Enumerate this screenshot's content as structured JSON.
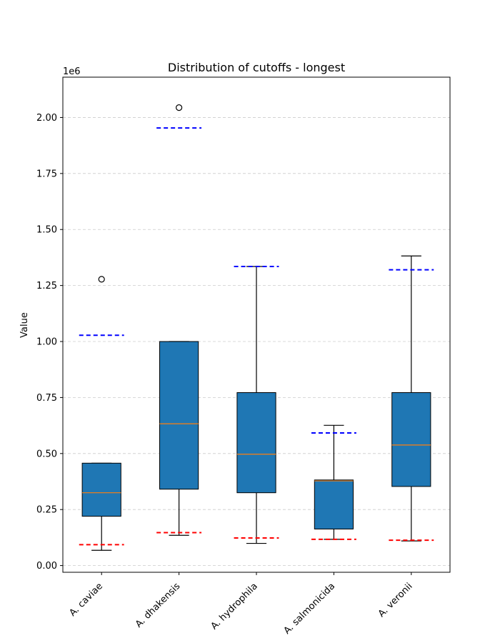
{
  "chart_data": {
    "type": "box",
    "title": "Distribution of cutoffs - longest",
    "xlabel": "",
    "ylabel": "Value",
    "y_offset_label": "1e6",
    "ylim": [
      -30000,
      2180000
    ],
    "y_ticks": [
      0,
      250000,
      500000,
      750000,
      1000000,
      1250000,
      1500000,
      1750000,
      2000000
    ],
    "y_tick_labels": [
      "0.00",
      "0.25",
      "0.50",
      "0.75",
      "1.00",
      "1.25",
      "1.50",
      "1.75",
      "2.00"
    ],
    "grid": "y-dashed",
    "categories": [
      "A. caviae",
      "A. dhakensis",
      "A. hydrophila",
      "A. salmonicida",
      "A. veronii"
    ],
    "boxes": [
      {
        "whisker_low": 68000,
        "q1": 220000,
        "median": 325000,
        "q3": 457000,
        "whisker_high": 457000,
        "outliers": [
          1278000
        ],
        "lower_cutoff": 93000,
        "upper_cutoff": 1028000
      },
      {
        "whisker_low": 135000,
        "q1": 341000,
        "median": 633000,
        "q3": 1000000,
        "whisker_high": 1000000,
        "outliers": [
          2044000
        ],
        "lower_cutoff": 147000,
        "upper_cutoff": 1953000
      },
      {
        "whisker_low": 99000,
        "q1": 325000,
        "median": 497000,
        "q3": 772000,
        "whisker_high": 1335000,
        "outliers": [],
        "lower_cutoff": 123000,
        "upper_cutoff": 1335000
      },
      {
        "whisker_low": 117000,
        "q1": 163000,
        "median": 378000,
        "q3": 382000,
        "whisker_high": 626000,
        "outliers": [],
        "lower_cutoff": 117000,
        "upper_cutoff": 592000
      },
      {
        "whisker_low": 110000,
        "q1": 353000,
        "median": 538000,
        "q3": 772000,
        "whisker_high": 1382000,
        "outliers": [],
        "lower_cutoff": 113000,
        "upper_cutoff": 1320000
      }
    ],
    "colors": {
      "box_fill": "#1f77b4",
      "median": "#ff7f0e",
      "lower_cutoff": "#ff0000",
      "upper_cutoff": "#0000ff",
      "grid": "#cccccc"
    }
  }
}
